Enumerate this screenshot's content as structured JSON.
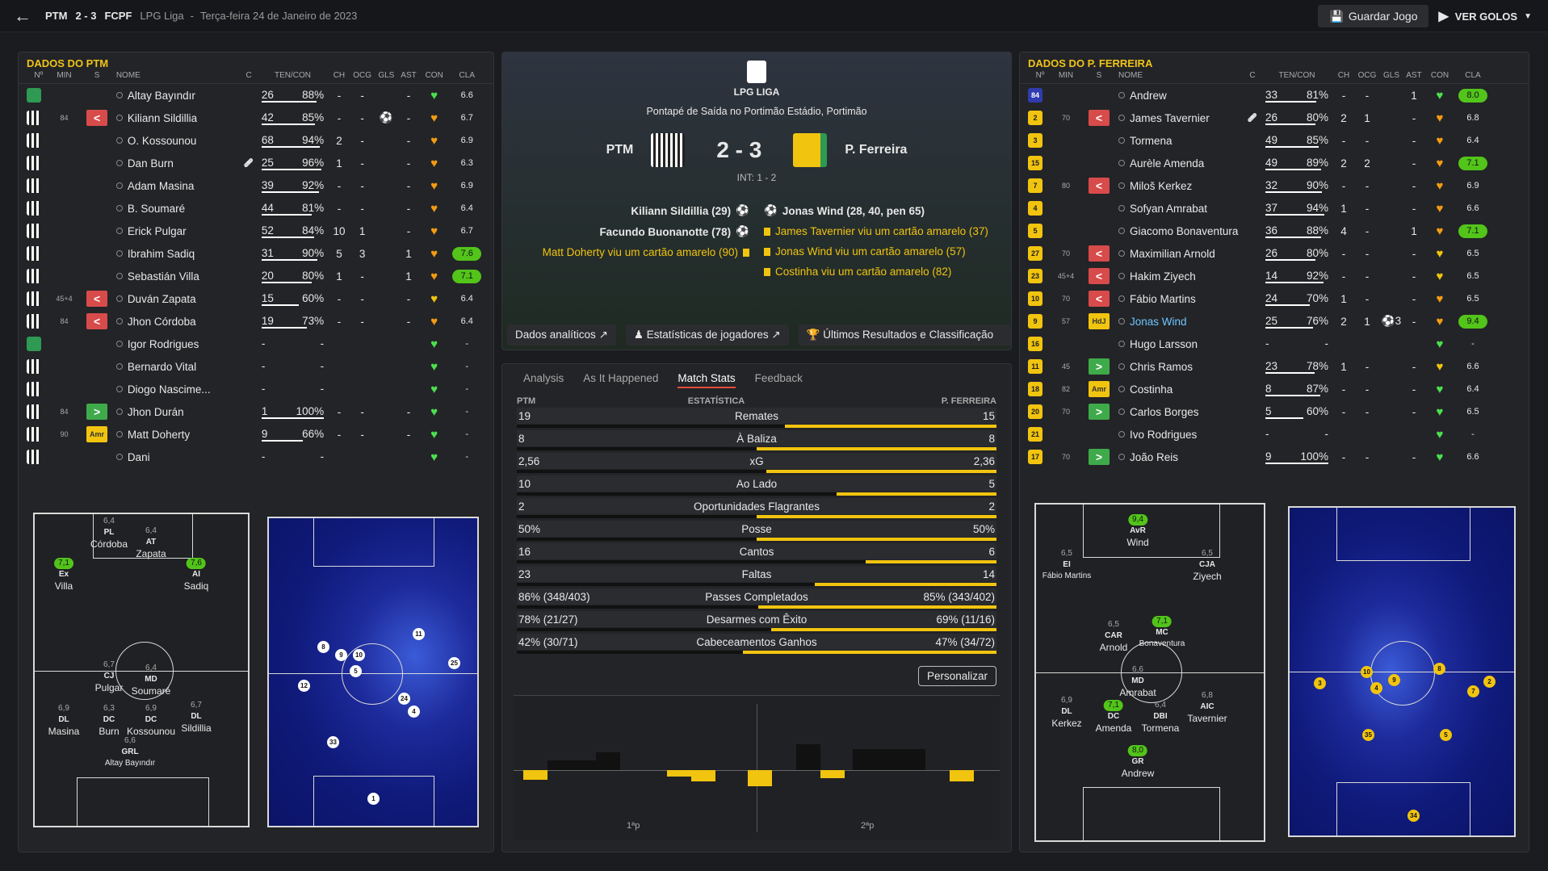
{
  "topbar": {
    "home_short": "PTM",
    "score": "2 - 3",
    "away_short": "FCPF",
    "competition": "LPG Liga",
    "separator": "-",
    "date": "Terça-feira 24 de Janeiro de 2023",
    "save_label": "Guardar Jogo",
    "watch_label": "VER GOLOS"
  },
  "columns": {
    "num": "Nº",
    "min": "MIN",
    "s": "S",
    "name": "NOME",
    "c": "C",
    "tencon": "TEN/CON",
    "ch": "CH",
    "ocg": "OCG",
    "gls": "GLS",
    "ast": "AST",
    "con": "CON",
    "cla": "CLA"
  },
  "home": {
    "title": "DADOS DO PTM",
    "players": [
      {
        "name": "Altay Bayındır",
        "min": "",
        "sub": "",
        "ten": "26",
        "pct": "88%",
        "pct_v": 0.88,
        "ch": "-",
        "ocg": "-",
        "gls": "",
        "ast": "-",
        "con": "g",
        "cla": "6.6",
        "hi": false,
        "shirt": "gk"
      },
      {
        "name": "Kiliann Sildillia",
        "min": "84",
        "sub": "<",
        "ten": "42",
        "pct": "85%",
        "pct_v": 0.85,
        "ch": "-",
        "ocg": "-",
        "gls": "⚽",
        "ast": "-",
        "con": "o",
        "cla": "6.7",
        "hi": false,
        "shirt": "bw"
      },
      {
        "name": "O. Kossounou",
        "min": "",
        "sub": "",
        "ten": "68",
        "pct": "94%",
        "pct_v": 0.94,
        "ch": "2",
        "ocg": "-",
        "gls": "",
        "ast": "-",
        "con": "o",
        "cla": "6.9",
        "hi": false,
        "shirt": "bw"
      },
      {
        "name": "Dan Burn",
        "min": "",
        "sub": "",
        "ten": "25",
        "pct": "96%",
        "pct_v": 0.96,
        "ch": "1",
        "ocg": "-",
        "gls": "",
        "ast": "-",
        "con": "o",
        "cla": "6.3",
        "hi": false,
        "shirt": "bw",
        "c": "🩹"
      },
      {
        "name": "Adam Masina",
        "min": "",
        "sub": "",
        "ten": "39",
        "pct": "92%",
        "pct_v": 0.92,
        "ch": "-",
        "ocg": "-",
        "gls": "",
        "ast": "-",
        "con": "o",
        "cla": "6.9",
        "hi": false,
        "shirt": "bw"
      },
      {
        "name": "B. Soumaré",
        "min": "",
        "sub": "",
        "ten": "44",
        "pct": "81%",
        "pct_v": 0.81,
        "ch": "-",
        "ocg": "-",
        "gls": "",
        "ast": "-",
        "con": "o",
        "cla": "6.4",
        "hi": false,
        "shirt": "bw"
      },
      {
        "name": "Erick Pulgar",
        "min": "",
        "sub": "",
        "ten": "52",
        "pct": "84%",
        "pct_v": 0.84,
        "ch": "10",
        "ocg": "1",
        "gls": "",
        "ast": "-",
        "con": "o",
        "cla": "6.7",
        "hi": false,
        "shirt": "bw"
      },
      {
        "name": "Ibrahim Sadiq",
        "min": "",
        "sub": "",
        "ten": "31",
        "pct": "90%",
        "pct_v": 0.9,
        "ch": "5",
        "ocg": "3",
        "gls": "",
        "ast": "1",
        "con": "o",
        "cla": "7.6",
        "hi": true,
        "shirt": "bw"
      },
      {
        "name": "Sebastián Villa",
        "min": "",
        "sub": "",
        "ten": "20",
        "pct": "80%",
        "pct_v": 0.8,
        "ch": "1",
        "ocg": "-",
        "gls": "",
        "ast": "1",
        "con": "o",
        "cla": "7.1",
        "hi": true,
        "shirt": "bw"
      },
      {
        "name": "Duván Zapata",
        "min": "45+4",
        "sub": "<",
        "ten": "15",
        "pct": "60%",
        "pct_v": 0.6,
        "ch": "-",
        "ocg": "-",
        "gls": "",
        "ast": "-",
        "con": "y",
        "cla": "6.4",
        "hi": false,
        "shirt": "bw"
      },
      {
        "name": "Jhon Córdoba",
        "min": "84",
        "sub": "<",
        "ten": "19",
        "pct": "73%",
        "pct_v": 0.73,
        "ch": "-",
        "ocg": "-",
        "gls": "",
        "ast": "-",
        "con": "o",
        "cla": "6.4",
        "hi": false,
        "shirt": "bw"
      },
      {
        "name": "Igor Rodrigues",
        "min": "",
        "sub": "",
        "ten": "-",
        "pct": "-",
        "pct_v": 0,
        "ch": "",
        "ocg": "",
        "gls": "",
        "ast": "",
        "con": "g",
        "cla": "-",
        "hi": false,
        "shirt": "gk"
      },
      {
        "name": "Bernardo Vital",
        "min": "",
        "sub": "",
        "ten": "-",
        "pct": "-",
        "pct_v": 0,
        "ch": "",
        "ocg": "",
        "gls": "",
        "ast": "",
        "con": "g",
        "cla": "-",
        "hi": false,
        "shirt": "bw"
      },
      {
        "name": "Diogo Nascime...",
        "min": "",
        "sub": "",
        "ten": "-",
        "pct": "-",
        "pct_v": 0,
        "ch": "",
        "ocg": "",
        "gls": "",
        "ast": "",
        "con": "g",
        "cla": "-",
        "hi": false,
        "shirt": "bw"
      },
      {
        "name": "Jhon Durán",
        "min": "84",
        "sub": ">",
        "ten": "1",
        "pct": "100%",
        "pct_v": 1.0,
        "ch": "-",
        "ocg": "-",
        "gls": "",
        "ast": "-",
        "con": "g",
        "cla": "-",
        "hi": false,
        "shirt": "bw"
      },
      {
        "name": "Matt Doherty",
        "min": "90",
        "sub": "Amr",
        "ten": "9",
        "pct": "66%",
        "pct_v": 0.66,
        "ch": "-",
        "ocg": "-",
        "gls": "",
        "ast": "-",
        "con": "g",
        "cla": "-",
        "hi": false,
        "shirt": "bw"
      },
      {
        "name": "Dani",
        "min": "",
        "sub": "",
        "ten": "-",
        "pct": "-",
        "pct_v": 0,
        "ch": "",
        "ocg": "",
        "gls": "",
        "ast": "",
        "con": "g",
        "cla": "-",
        "hi": false,
        "shirt": "bw"
      }
    ],
    "formation": [
      {
        "r": "6,4",
        "p": "PL",
        "n": "Córdoba",
        "g": false
      },
      {
        "r": "6,4",
        "p": "AT",
        "n": "Zapata",
        "g": false
      },
      {
        "r": "7,1",
        "p": "Ex",
        "n": "Villa",
        "g": true
      },
      {
        "r": "7,6",
        "p": "AI",
        "n": "Sadiq",
        "g": true
      },
      {
        "r": "6,7",
        "p": "CJ",
        "n": "Pulgar",
        "g": false
      },
      {
        "r": "6,4",
        "p": "MD",
        "n": "Soumaré",
        "g": false
      },
      {
        "r": "6,9",
        "p": "DL",
        "n": "Masina",
        "g": false
      },
      {
        "r": "6,3",
        "p": "DC",
        "n": "Burn",
        "g": false
      },
      {
        "r": "6,9",
        "p": "DC",
        "n": "Kossounou",
        "g": false
      },
      {
        "r": "6,7",
        "p": "DL",
        "n": "Sildillia",
        "g": false
      },
      {
        "r": "6,6",
        "p": "GRL",
        "n": "Altay Bayındır",
        "g": false
      }
    ],
    "heat_nodes": [
      "8",
      "9",
      "10",
      "11",
      "5",
      "12",
      "25",
      "24",
      "4",
      "33",
      "1"
    ]
  },
  "away": {
    "title": "DADOS DO P. FERREIRA",
    "players": [
      {
        "name": "Andrew",
        "num": "84",
        "min": "",
        "sub": "",
        "ten": "33",
        "pct": "81%",
        "pct_v": 0.81,
        "ch": "-",
        "ocg": "-",
        "gls": "",
        "ast": "1",
        "con": "g",
        "cla": "8.0",
        "hi": true,
        "shirt": "nv"
      },
      {
        "name": "James Tavernier",
        "num": "2",
        "min": "70",
        "sub": "<",
        "ten": "26",
        "pct": "80%",
        "pct_v": 0.8,
        "ch": "2",
        "ocg": "1",
        "gls": "",
        "ast": "-",
        "con": "o",
        "cla": "6.8",
        "hi": false,
        "shirt": "yl",
        "c": "🩹"
      },
      {
        "name": "Tormena",
        "num": "3",
        "min": "",
        "sub": "",
        "ten": "49",
        "pct": "85%",
        "pct_v": 0.85,
        "ch": "-",
        "ocg": "-",
        "gls": "",
        "ast": "-",
        "con": "o",
        "cla": "6.4",
        "hi": false,
        "shirt": "yl"
      },
      {
        "name": "Aurèle Amenda",
        "num": "15",
        "min": "",
        "sub": "",
        "ten": "49",
        "pct": "89%",
        "pct_v": 0.89,
        "ch": "2",
        "ocg": "2",
        "gls": "",
        "ast": "-",
        "con": "o",
        "cla": "7.1",
        "hi": true,
        "shirt": "yl"
      },
      {
        "name": "Miloš Kerkez",
        "num": "7",
        "min": "80",
        "sub": "<",
        "ten": "32",
        "pct": "90%",
        "pct_v": 0.9,
        "ch": "-",
        "ocg": "-",
        "gls": "",
        "ast": "-",
        "con": "o",
        "cla": "6.9",
        "hi": false,
        "shirt": "yl"
      },
      {
        "name": "Sofyan Amrabat",
        "num": "4",
        "min": "",
        "sub": "",
        "ten": "37",
        "pct": "94%",
        "pct_v": 0.94,
        "ch": "1",
        "ocg": "-",
        "gls": "",
        "ast": "-",
        "con": "o",
        "cla": "6.6",
        "hi": false,
        "shirt": "yl"
      },
      {
        "name": "Giacomo Bonaventura",
        "num": "5",
        "min": "",
        "sub": "",
        "ten": "36",
        "pct": "88%",
        "pct_v": 0.88,
        "ch": "4",
        "ocg": "-",
        "gls": "",
        "ast": "1",
        "con": "o",
        "cla": "7.1",
        "hi": true,
        "shirt": "yl"
      },
      {
        "name": "Maximilian Arnold",
        "num": "27",
        "min": "70",
        "sub": "<",
        "ten": "26",
        "pct": "80%",
        "pct_v": 0.8,
        "ch": "-",
        "ocg": "-",
        "gls": "",
        "ast": "-",
        "con": "y",
        "cla": "6.5",
        "hi": false,
        "shirt": "yl"
      },
      {
        "name": "Hakim Ziyech",
        "num": "23",
        "min": "45+4",
        "sub": "<",
        "ten": "14",
        "pct": "92%",
        "pct_v": 0.92,
        "ch": "-",
        "ocg": "-",
        "gls": "",
        "ast": "-",
        "con": "y",
        "cla": "6.5",
        "hi": false,
        "shirt": "yl"
      },
      {
        "name": "Fábio Martins",
        "num": "10",
        "min": "70",
        "sub": "<",
        "ten": "24",
        "pct": "70%",
        "pct_v": 0.7,
        "ch": "1",
        "ocg": "-",
        "gls": "",
        "ast": "-",
        "con": "o",
        "cla": "6.5",
        "hi": false,
        "shirt": "yl"
      },
      {
        "name": "Jonas Wind",
        "num": "9",
        "min": "57",
        "sub": "HdJ",
        "ten": "25",
        "pct": "76%",
        "pct_v": 0.76,
        "ch": "2",
        "ocg": "1",
        "gls": "⚽3",
        "ast": "-",
        "con": "o",
        "cla": "9.4",
        "hi": true,
        "shirt": "yl"
      },
      {
        "name": "Hugo Larsson",
        "num": "16",
        "min": "",
        "sub": "",
        "ten": "-",
        "pct": "-",
        "pct_v": 0,
        "ch": "",
        "ocg": "",
        "gls": "",
        "ast": "",
        "con": "g",
        "cla": "-",
        "hi": false,
        "shirt": "yl"
      },
      {
        "name": "Chris Ramos",
        "num": "11",
        "min": "45",
        "sub": ">",
        "ten": "23",
        "pct": "78%",
        "pct_v": 0.78,
        "ch": "1",
        "ocg": "-",
        "gls": "",
        "ast": "-",
        "con": "y",
        "cla": "6.6",
        "hi": false,
        "shirt": "yl"
      },
      {
        "name": "Costinha",
        "num": "18",
        "min": "82",
        "sub": "Amr",
        "ten": "8",
        "pct": "87%",
        "pct_v": 0.87,
        "ch": "-",
        "ocg": "-",
        "gls": "",
        "ast": "-",
        "con": "g",
        "cla": "6.4",
        "hi": false,
        "shirt": "yl"
      },
      {
        "name": "Carlos Borges",
        "num": "20",
        "min": "70",
        "sub": ">",
        "ten": "5",
        "pct": "60%",
        "pct_v": 0.6,
        "ch": "-",
        "ocg": "-",
        "gls": "",
        "ast": "-",
        "con": "g",
        "cla": "6.5",
        "hi": false,
        "shirt": "yl"
      },
      {
        "name": "Ivo Rodrigues",
        "num": "21",
        "min": "",
        "sub": "",
        "ten": "-",
        "pct": "-",
        "pct_v": 0,
        "ch": "",
        "ocg": "",
        "gls": "",
        "ast": "",
        "con": "g",
        "cla": "-",
        "hi": false,
        "shirt": "yl"
      },
      {
        "name": "João Reis",
        "num": "17",
        "min": "70",
        "sub": ">",
        "ten": "9",
        "pct": "100%",
        "pct_v": 1.0,
        "ch": "-",
        "ocg": "-",
        "gls": "",
        "ast": "-",
        "con": "g",
        "cla": "6.6",
        "hi": false,
        "shirt": "yl"
      }
    ],
    "formation": [
      {
        "r": "9,4",
        "p": "AvR",
        "n": "Wind",
        "g": true
      },
      {
        "r": "6,5",
        "p": "EI",
        "n": "Fábio Martins",
        "g": false
      },
      {
        "r": "6,5",
        "p": "CJA",
        "n": "Ziyech",
        "g": false
      },
      {
        "r": "6,5",
        "p": "CAR",
        "n": "Arnold",
        "g": false
      },
      {
        "r": "7,1",
        "p": "MC",
        "n": "Bonaventura",
        "g": true
      },
      {
        "r": "6,6",
        "p": "MD",
        "n": "Amrabat",
        "g": false
      },
      {
        "r": "6,9",
        "p": "DL",
        "n": "Kerkez",
        "g": false
      },
      {
        "r": "7,1",
        "p": "DC",
        "n": "Amenda",
        "g": true
      },
      {
        "r": "6,4",
        "p": "DBI",
        "n": "Tormena",
        "g": false
      },
      {
        "r": "6,8",
        "p": "AIC",
        "n": "Tavernier",
        "g": false
      },
      {
        "r": "8,0",
        "p": "GR",
        "n": "Andrew",
        "g": true
      }
    ],
    "heat_nodes": [
      "3",
      "10",
      "4",
      "9",
      "8",
      "7",
      "2",
      "35",
      "5",
      "34"
    ]
  },
  "match": {
    "league": "LPG LIGA",
    "venue": "Pontapé de Saída no Portimão Estádio, Portimão",
    "home_team": "PTM",
    "away_team": "P. Ferreira",
    "score": "2 - 3",
    "ht": "INT: 1 - 2",
    "home_events": [
      {
        "text": "Kiliann Sildillia (29)",
        "type": "goal"
      },
      {
        "text": "Facundo Buonanotte (78)",
        "type": "goal"
      },
      {
        "text": "Matt Doherty viu um cartão amarelo (90)",
        "type": "card"
      }
    ],
    "away_events": [
      {
        "text": "Jonas Wind (28, 40, pen 65)",
        "type": "goal"
      },
      {
        "text": "James Tavernier viu um cartão amarelo (37)",
        "type": "card"
      },
      {
        "text": "Jonas Wind viu um cartão amarelo (57)",
        "type": "card"
      },
      {
        "text": "Costinha viu um cartão amarelo (82)",
        "type": "card"
      }
    ],
    "links": {
      "analytics": "Dados analíticos",
      "player_stats": "Estatísticas de jogadores",
      "results": "Últimos Resultados e Classificação"
    }
  },
  "stats": {
    "tabs": [
      "Analysis",
      "As It Happened",
      "Match Stats",
      "Feedback"
    ],
    "active_tab": "Match Stats",
    "head_left": "PTM",
    "head_mid": "ESTATÍSTICA",
    "head_right": "P. FERREIRA",
    "rows": [
      {
        "l": "19",
        "m": "Remates",
        "r": "15",
        "lv": 19,
        "rv": 15
      },
      {
        "l": "8",
        "m": "À Baliza",
        "r": "8",
        "lv": 8,
        "rv": 8
      },
      {
        "l": "2,56",
        "m": "xG",
        "r": "2,36",
        "lv": 2.56,
        "rv": 2.36
      },
      {
        "l": "10",
        "m": "Ao Lado",
        "r": "5",
        "lv": 10,
        "rv": 5
      },
      {
        "l": "2",
        "m": "Oportunidades Flagrantes",
        "r": "2",
        "lv": 2,
        "rv": 2
      },
      {
        "l": "50%",
        "m": "Posse",
        "r": "50%",
        "lv": 50,
        "rv": 50
      },
      {
        "l": "16",
        "m": "Cantos",
        "r": "6",
        "lv": 16,
        "rv": 6
      },
      {
        "l": "23",
        "m": "Faltas",
        "r": "14",
        "lv": 23,
        "rv": 14
      },
      {
        "l": "86% (348/403)",
        "m": "Passes Completados",
        "r": "85% (343/402)",
        "lv": 86,
        "rv": 85
      },
      {
        "l": "78% (21/27)",
        "m": "Desarmes com Êxito",
        "r": "69% (11/16)",
        "lv": 78,
        "rv": 69
      },
      {
        "l": "42% (30/71)",
        "m": "Cabeceamentos Ganhos",
        "r": "47% (34/72)",
        "lv": 42,
        "rv": 47
      }
    ],
    "customize": "Personalizar",
    "half1": "1ªp",
    "half2": "2ªp"
  },
  "colors": {
    "accent": "#f1c40f",
    "sub_off": "#d84b4b",
    "sub_on": "#3faa4a",
    "rating_high": "#52c41a"
  }
}
